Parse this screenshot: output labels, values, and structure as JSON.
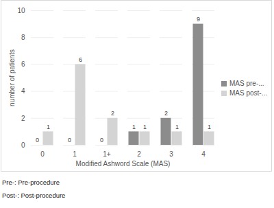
{
  "chart_data": {
    "type": "bar",
    "categories": [
      "0",
      "1",
      "1+",
      "2",
      "3",
      "4"
    ],
    "series": [
      {
        "name": "MAS pre-...",
        "color": "#8c8c8c",
        "values": [
          0,
          0,
          0,
          1,
          2,
          9
        ]
      },
      {
        "name": "MAS post-...",
        "color": "#d4d4d4",
        "values": [
          1,
          6,
          2,
          1,
          1,
          1
        ]
      }
    ],
    "xlabel": "Modified Ashword Scale (MAS)",
    "ylabel": "number of patients",
    "ylim": [
      0,
      10
    ],
    "yticks": [
      0,
      2,
      4,
      6,
      8,
      10
    ],
    "grid": true,
    "legend": "right",
    "data_labels": true,
    "annotations": [
      "Pre-: Pre-procedure",
      "Post-: Post-procedure"
    ]
  }
}
